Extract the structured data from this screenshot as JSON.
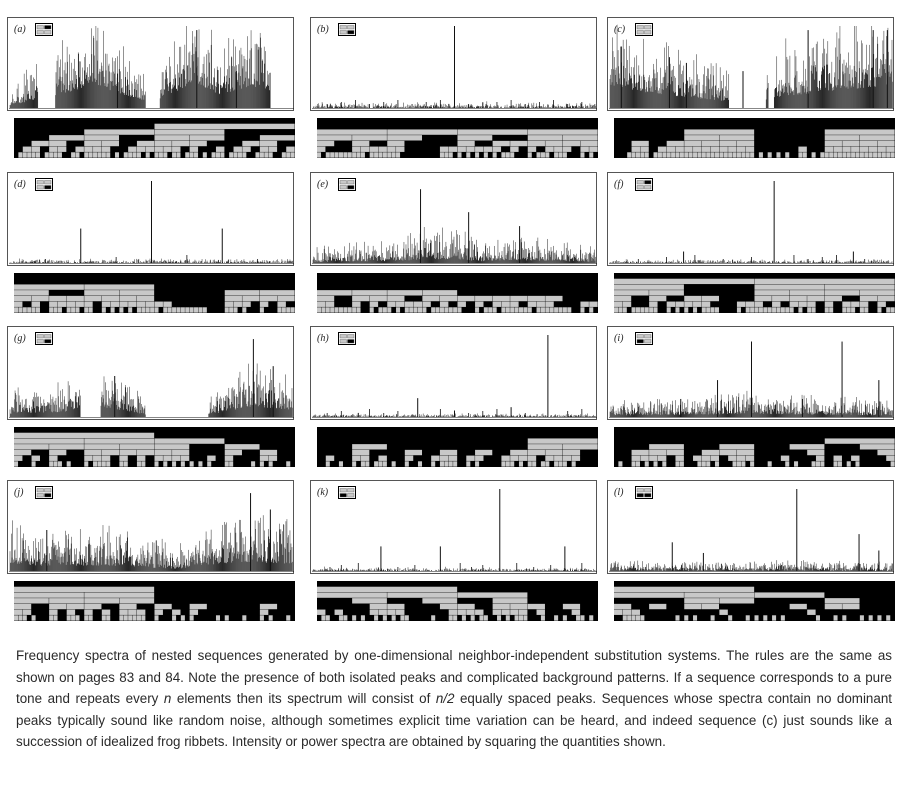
{
  "chart_data": [
    {
      "id": "a",
      "type": "bar",
      "label": "(a)",
      "rule": {
        "black": [
          "B",
          "W",
          "B",
          "W"
        ],
        "white": [
          "W",
          "B",
          "W",
          "W"
        ]
      },
      "envelope": [
        [
          0,
          0.1
        ],
        [
          0.1,
          0.35
        ],
        [
          0.3,
          0.9
        ],
        [
          0.5,
          0.2
        ],
        [
          0.65,
          1.0
        ],
        [
          0.75,
          0.5
        ],
        [
          0.85,
          0.9
        ],
        [
          1,
          0.5
        ]
      ],
      "peaks": [
        [
          0.38,
          0.42
        ],
        [
          0.66,
          0.95
        ],
        [
          0.8,
          0.45
        ]
      ],
      "background": 0.3,
      "noise": 0.22,
      "gaps": [
        [
          0.1,
          0.16
        ],
        [
          0.48,
          0.53
        ],
        [
          0.92,
          1.0
        ]
      ]
    },
    {
      "id": "b",
      "type": "bar",
      "label": "(b)",
      "rule": {
        "black": [
          "B",
          "B",
          "W",
          "W"
        ],
        "white": [
          "W",
          "W",
          "W",
          "B"
        ]
      },
      "envelope": [
        [
          0,
          0.03
        ],
        [
          1,
          0.03
        ]
      ],
      "peaks": [
        [
          0.5,
          1.0
        ],
        [
          0.6,
          0.07
        ],
        [
          0.48,
          0.05
        ]
      ],
      "background": 0.05,
      "noise": 0.05,
      "ticks": [
        0.05,
        0.1,
        0.15,
        0.2,
        0.25,
        0.3,
        0.35,
        0.4,
        0.45,
        0.55,
        0.65,
        0.7,
        0.75,
        0.8,
        0.85,
        0.9,
        0.95
      ]
    },
    {
      "id": "c",
      "type": "bar",
      "label": "(c)",
      "rule": {
        "black": [
          "B",
          "B",
          "B",
          "W"
        ],
        "white": [
          "W",
          "W",
          "W",
          "W"
        ]
      },
      "envelope": [
        [
          0,
          0.8
        ],
        [
          0.15,
          0.5
        ],
        [
          0.3,
          0.35
        ],
        [
          0.5,
          0.1
        ],
        [
          0.6,
          0.4
        ],
        [
          0.8,
          0.6
        ],
        [
          1,
          0.8
        ]
      ],
      "peaks": [
        [
          0.04,
          0.75
        ],
        [
          0.21,
          0.62
        ],
        [
          0.27,
          0.55
        ],
        [
          0.47,
          0.45
        ],
        [
          0.7,
          0.95
        ],
        [
          0.93,
          0.95
        ],
        [
          0.98,
          0.95
        ]
      ],
      "background": 0.35,
      "noise": 0.4,
      "gaps": [
        [
          0.42,
          0.55
        ],
        [
          0.56,
          0.58
        ]
      ]
    },
    {
      "id": "d",
      "type": "bar",
      "label": "(d)",
      "rule": {
        "black": [
          "B",
          "B",
          "W",
          "W"
        ],
        "white": [
          "W",
          "W",
          "W",
          "B"
        ]
      },
      "envelope": [
        [
          0,
          0.03
        ],
        [
          1,
          0.03
        ]
      ],
      "peaks": [
        [
          0.25,
          0.42
        ],
        [
          0.5,
          1.0
        ],
        [
          0.75,
          0.42
        ]
      ],
      "background": 0.04,
      "noise": 0.03,
      "ticks": [
        0.125,
        0.375,
        0.625,
        0.875
      ]
    },
    {
      "id": "e",
      "type": "bar",
      "label": "(e)",
      "rule": {
        "black": [
          "B",
          "B",
          "W",
          "W"
        ],
        "white": [
          "W",
          "W",
          "W",
          "B"
        ]
      },
      "envelope": [
        [
          0,
          0.1
        ],
        [
          0.3,
          0.2
        ],
        [
          0.4,
          0.35
        ],
        [
          0.5,
          0.4
        ],
        [
          0.6,
          0.15
        ],
        [
          0.7,
          0.3
        ],
        [
          1,
          0.1
        ]
      ],
      "peaks": [
        [
          0.38,
          0.9
        ],
        [
          0.55,
          0.62
        ],
        [
          0.73,
          0.45
        ]
      ],
      "background": 0.12,
      "noise": 0.15
    },
    {
      "id": "f",
      "type": "bar",
      "label": "(f)",
      "rule": {
        "black": [
          "B",
          "B",
          "W",
          "W"
        ],
        "white": [
          "W",
          "B",
          "W",
          "W"
        ]
      },
      "envelope": [
        [
          0,
          0.02
        ],
        [
          1,
          0.02
        ]
      ],
      "peaks": [
        [
          0.58,
          1.0
        ],
        [
          0.26,
          0.14
        ],
        [
          0.86,
          0.14
        ]
      ],
      "background": 0.04,
      "noise": 0.03,
      "ticks": [
        0.1,
        0.2,
        0.3,
        0.4,
        0.5,
        0.65,
        0.7,
        0.75,
        0.8,
        0.9
      ]
    },
    {
      "id": "g",
      "type": "bar",
      "label": "(g)",
      "rule": {
        "black": [
          "B",
          "B",
          "W",
          "B"
        ],
        "white": [
          "W",
          "W",
          "W",
          "B"
        ]
      },
      "envelope": [
        [
          0,
          0.15
        ],
        [
          0.2,
          0.25
        ],
        [
          0.35,
          0.45
        ],
        [
          0.5,
          0.05
        ],
        [
          0.7,
          0.1
        ],
        [
          0.85,
          0.5
        ],
        [
          1,
          0.35
        ]
      ],
      "peaks": [
        [
          0.37,
          0.5
        ],
        [
          0.86,
          0.95
        ],
        [
          0.93,
          0.62
        ]
      ],
      "background": 0.25,
      "noise": 0.2,
      "gaps": [
        [
          0.25,
          0.32
        ],
        [
          0.48,
          0.7
        ]
      ]
    },
    {
      "id": "h",
      "type": "bar",
      "label": "(h)",
      "rule": {
        "black": [
          "B",
          "W",
          "B",
          "B"
        ],
        "white": [
          "W",
          "W",
          "W",
          "B"
        ]
      },
      "envelope": [
        [
          0,
          0.02
        ],
        [
          1,
          0.02
        ]
      ],
      "peaks": [
        [
          0.83,
          1.0
        ],
        [
          0.37,
          0.23
        ],
        [
          0.16,
          0.05
        ],
        [
          0.5,
          0.08
        ],
        [
          0.7,
          0.12
        ]
      ],
      "background": 0.04,
      "noise": 0.03,
      "ticks": [
        0.05,
        0.1,
        0.2,
        0.25,
        0.3,
        0.45,
        0.55,
        0.6,
        0.65,
        0.75,
        0.9,
        0.95
      ]
    },
    {
      "id": "i",
      "type": "bar",
      "label": "(i)",
      "rule": {
        "black": [
          "B",
          "W",
          "B",
          "B"
        ],
        "white": [
          "W",
          "W",
          "B",
          "W"
        ]
      },
      "envelope": [
        [
          0,
          0.12
        ],
        [
          0.3,
          0.18
        ],
        [
          0.5,
          0.25
        ],
        [
          0.7,
          0.2
        ],
        [
          1,
          0.12
        ]
      ],
      "peaks": [
        [
          0.5,
          0.92
        ],
        [
          0.82,
          0.92
        ],
        [
          0.38,
          0.45
        ],
        [
          0.95,
          0.45
        ],
        [
          0.25,
          0.22
        ],
        [
          0.68,
          0.22
        ]
      ],
      "background": 0.15,
      "noise": 0.12
    },
    {
      "id": "j",
      "type": "bar",
      "label": "(j)",
      "rule": {
        "black": [
          "B",
          "B",
          "W",
          "B"
        ],
        "white": [
          "W",
          "W",
          "W",
          "B"
        ]
      },
      "envelope": [
        [
          0,
          0.4
        ],
        [
          0.1,
          0.3
        ],
        [
          0.25,
          0.25
        ],
        [
          0.35,
          0.3
        ],
        [
          0.6,
          0.1
        ],
        [
          0.8,
          0.5
        ],
        [
          1,
          0.4
        ]
      ],
      "peaks": [
        [
          0.85,
          0.95
        ],
        [
          0.92,
          0.75
        ],
        [
          0.13,
          0.5
        ]
      ],
      "background": 0.22,
      "noise": 0.3
    },
    {
      "id": "k",
      "type": "bar",
      "label": "(k)",
      "rule": {
        "black": [
          "B",
          "B",
          "W",
          "B"
        ],
        "white": [
          "W",
          "W",
          "B",
          "W"
        ]
      },
      "envelope": [
        [
          0,
          0.02
        ],
        [
          1,
          0.02
        ]
      ],
      "peaks": [
        [
          0.66,
          1.0
        ],
        [
          0.24,
          0.3
        ],
        [
          0.45,
          0.3
        ],
        [
          0.89,
          0.3
        ]
      ],
      "background": 0.04,
      "noise": 0.03,
      "ticks": [
        0.06,
        0.1,
        0.16,
        0.3,
        0.36,
        0.52,
        0.56,
        0.6,
        0.72,
        0.78,
        0.84,
        0.95
      ]
    },
    {
      "id": "l",
      "type": "bar",
      "label": "(l)",
      "rule": {
        "black": [
          "B",
          "B",
          "W",
          "B"
        ],
        "white": [
          "W",
          "W",
          "B",
          "B"
        ]
      },
      "envelope": [
        [
          0,
          0.08
        ],
        [
          0.3,
          0.06
        ],
        [
          0.6,
          0.08
        ],
        [
          1,
          0.06
        ]
      ],
      "peaks": [
        [
          0.66,
          1.0
        ],
        [
          0.22,
          0.35
        ],
        [
          0.88,
          0.45
        ],
        [
          0.33,
          0.22
        ],
        [
          0.95,
          0.25
        ]
      ],
      "background": 0.08,
      "noise": 0.08
    }
  ],
  "caption": {
    "p1": "Frequency spectra of nested sequences generated by one-dimensional neighbor-independent substitution systems. The rules are the same as shown on pages 83 and 84. Note the presence of both isolated peaks and complicated background patterns. If a sequence corresponds to a pure tone and repeats every ",
    "n1": "n",
    "p2": " elements then its spectrum will consist of ",
    "n2": "n/2",
    "p3": " equally spaced peaks. Sequences whose spectra contain no dominant peaks typically sound like random noise, although sometimes explicit time variation can be heard, and indeed sequence (c) just sounds like a succession of idealized frog ribbets. Intensity or power spectra are obtained by squaring the quantities shown."
  },
  "colors": {
    "bars": "#111111",
    "black": "#000000",
    "gray": "#c8c8c8",
    "frame": "#555555"
  }
}
